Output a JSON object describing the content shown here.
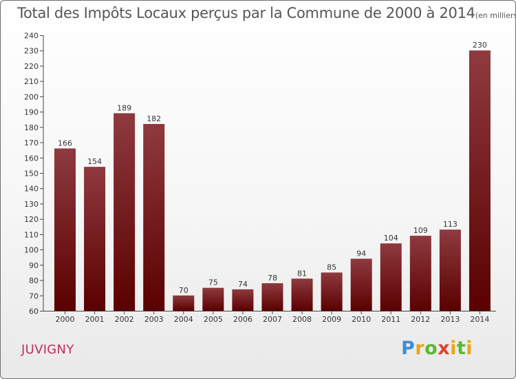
{
  "title": "Total des Impôts Locaux perçus par la Commune de 2000 à 2014",
  "unit": "(en milliers d'€)",
  "commune": "JUVIGNY",
  "logo": {
    "text": "Proxiti",
    "parts": [
      "P",
      "r",
      "o",
      "x",
      "i",
      "t",
      "i"
    ],
    "colors": [
      "#3a8fd6",
      "#e8a51a",
      "#5cb833",
      "#e0432f"
    ]
  },
  "colors": {
    "bar_top": "#8e3a3f",
    "bar_bottom": "#5a0000",
    "title": "#555555",
    "commune": "#c0305a"
  },
  "chart_data": {
    "type": "bar",
    "title": "Total des Impôts Locaux perçus par la Commune de 2000 à 2014",
    "xlabel": "",
    "ylabel": "(en milliers d'€)",
    "categories": [
      "2000",
      "2001",
      "2002",
      "2003",
      "2004",
      "2005",
      "2006",
      "2007",
      "2008",
      "2009",
      "2010",
      "2011",
      "2012",
      "2013",
      "2014"
    ],
    "values": [
      166,
      154,
      189,
      182,
      70,
      75,
      74,
      78,
      81,
      85,
      94,
      104,
      109,
      113,
      230
    ],
    "ylim": [
      60,
      240
    ],
    "yticks": [
      60,
      70,
      80,
      90,
      100,
      110,
      120,
      130,
      140,
      150,
      160,
      170,
      180,
      190,
      200,
      210,
      220,
      230,
      240
    ],
    "grid": false,
    "legend": "none"
  }
}
